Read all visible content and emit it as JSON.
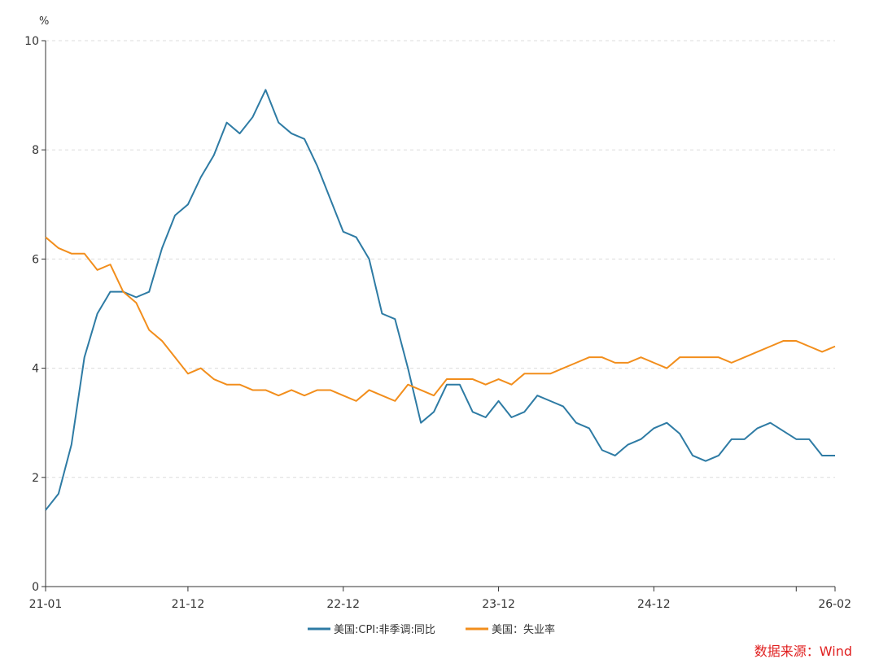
{
  "chart_data": {
    "type": "line",
    "unit": "%",
    "ylim": [
      0,
      10
    ],
    "yticks": [
      "0",
      "2",
      "4",
      "6",
      "8",
      "10"
    ],
    "x_ticks": [
      {
        "label": "21-01",
        "index": 0
      },
      {
        "label": "21-12",
        "index": 11
      },
      {
        "label": "22-12",
        "index": 23
      },
      {
        "label": "23-12",
        "index": 35
      },
      {
        "label": "24-12",
        "index": 47
      },
      {
        "label": "26-02",
        "index": 61
      }
    ],
    "x_months": [
      "21-01",
      "21-02",
      "21-03",
      "21-04",
      "21-05",
      "21-06",
      "21-07",
      "21-08",
      "21-09",
      "21-10",
      "21-11",
      "21-12",
      "22-01",
      "22-02",
      "22-03",
      "22-04",
      "22-05",
      "22-06",
      "22-07",
      "22-08",
      "22-09",
      "22-10",
      "22-11",
      "22-12",
      "23-01",
      "23-02",
      "23-03",
      "23-04",
      "23-05",
      "23-06",
      "23-07",
      "23-08",
      "23-09",
      "23-10",
      "23-11",
      "23-12",
      "24-01",
      "24-02",
      "24-03",
      "24-04",
      "24-05",
      "24-06",
      "24-07",
      "24-08",
      "24-09",
      "24-10",
      "24-11",
      "24-12",
      "25-01",
      "25-02",
      "25-03",
      "25-04",
      "25-05",
      "25-06",
      "25-07",
      "25-08",
      "25-09",
      "25-10",
      "25-11",
      "25-12",
      "26-01",
      "26-02"
    ],
    "grid": "horizontal-dashed",
    "legend": "bottom-center",
    "series": [
      {
        "name": "美国:CPI:非季调:同比",
        "color": "#2e7ba4",
        "values": [
          1.4,
          1.7,
          2.6,
          4.2,
          5.0,
          5.4,
          5.4,
          5.3,
          5.4,
          6.2,
          6.8,
          7.0,
          7.5,
          7.9,
          8.5,
          8.3,
          8.6,
          9.1,
          8.5,
          8.3,
          8.2,
          7.7,
          7.1,
          6.5,
          6.4,
          6.0,
          5.0,
          4.9,
          4.0,
          3.0,
          3.2,
          3.7,
          3.7,
          3.2,
          3.1,
          3.4,
          3.1,
          3.2,
          3.5,
          3.4,
          3.3,
          3.0,
          2.9,
          2.5,
          2.4,
          2.6,
          2.7,
          2.9,
          3.0,
          2.8,
          2.4,
          2.3,
          2.4,
          2.7,
          2.7,
          2.9,
          3.0,
          null,
          2.7,
          2.7,
          2.4,
          2.4
        ]
      },
      {
        "name": "美国：失业率",
        "color": "#f28e1c",
        "values": [
          6.4,
          6.2,
          6.1,
          6.1,
          5.8,
          5.9,
          5.4,
          5.2,
          4.7,
          4.5,
          4.2,
          3.9,
          4.0,
          3.8,
          3.7,
          3.7,
          3.6,
          3.6,
          3.5,
          3.6,
          3.5,
          3.6,
          3.6,
          3.5,
          3.4,
          3.6,
          3.5,
          3.4,
          3.7,
          3.6,
          3.5,
          3.8,
          3.8,
          3.8,
          3.7,
          3.8,
          3.7,
          3.9,
          3.9,
          3.9,
          4.0,
          4.1,
          4.2,
          4.2,
          4.1,
          4.1,
          4.2,
          4.1,
          4.0,
          4.2,
          4.2,
          4.2,
          4.2,
          4.1,
          4.2,
          4.3,
          4.4,
          4.5,
          4.5,
          4.4,
          4.3,
          4.4
        ]
      }
    ],
    "source": "数据来源：Wind",
    "source_color": "#e02020"
  }
}
